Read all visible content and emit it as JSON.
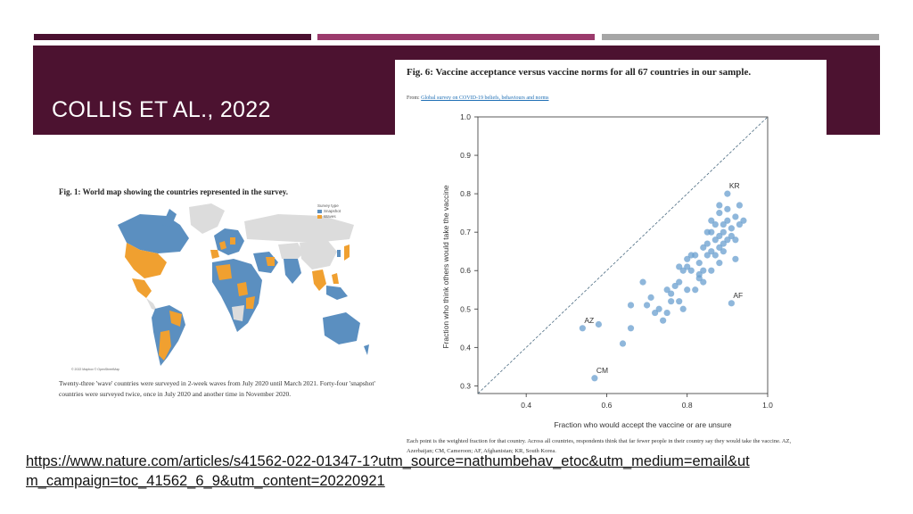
{
  "slide": {
    "title": "COLLIS ET AL., 2022",
    "url": "https://www.nature.com/articles/s41562-022-01347-1?utm_source=nathumbehav_etoc&utm_medium=email&utm_campaign=toc_41562_6_9&utm_content=20220921"
  },
  "colors": {
    "title_band": "#4c1230",
    "bar1": "#4a1030",
    "bar2": "#9b3a6c",
    "bar3": "#a6a6a6",
    "snapshot": "#5b8fc0",
    "waves": "#f0a030",
    "point": "#6a9fcf"
  },
  "fig1": {
    "title": "Fig. 1: World map showing the countries represented in the survey.",
    "legend_title": "Survey type",
    "legend_items": [
      "Snapshot",
      "Waves"
    ],
    "credit": "© 2022 Mapbox © OpenStreetMap",
    "caption": "Twenty-three 'wave' countries were surveyed in 2-week waves from July 2020 until March 2021. Forty-four 'snapshot' countries were surveyed twice, once in July 2020 and another time in November 2020."
  },
  "fig6": {
    "title": "Fig. 6: Vaccine acceptance versus vaccine norms for all 67 countries in our sample.",
    "from_label": "From:",
    "from_link": "Global survey on COVID-19 beliefs, behaviours and norms",
    "caption": "Each point is the weighted fraction for that country. Across all countries, respondents think that far fewer people in their country say they would take the vaccine. AZ, Azerbaijan; CM, Cameroon; AF, Afghanistan; KR, South Korea."
  },
  "chart_data": {
    "type": "scatter",
    "xlabel": "Fraction who would accept the vaccine or are unsure",
    "ylabel": "Fraction who think others would take the vaccine",
    "xlim": [
      0.28,
      1.0
    ],
    "ylim": [
      0.28,
      1.0
    ],
    "xticks": [
      "0.4",
      "0.6",
      "0.8",
      "1.0"
    ],
    "yticks": [
      "0.3",
      "0.4",
      "0.5",
      "0.6",
      "0.7",
      "0.8",
      "0.9",
      "1.0"
    ],
    "reference_line": "y = x",
    "labels": [
      {
        "text": "KR",
        "x": 0.9,
        "y": 0.8
      },
      {
        "text": "AF",
        "x": 0.91,
        "y": 0.515
      },
      {
        "text": "AZ",
        "x": 0.54,
        "y": 0.45
      },
      {
        "text": "CM",
        "x": 0.57,
        "y": 0.32
      }
    ],
    "points": [
      [
        0.54,
        0.45
      ],
      [
        0.58,
        0.46
      ],
      [
        0.57,
        0.32
      ],
      [
        0.64,
        0.41
      ],
      [
        0.66,
        0.45
      ],
      [
        0.66,
        0.51
      ],
      [
        0.69,
        0.57
      ],
      [
        0.7,
        0.51
      ],
      [
        0.71,
        0.53
      ],
      [
        0.72,
        0.49
      ],
      [
        0.73,
        0.5
      ],
      [
        0.74,
        0.47
      ],
      [
        0.75,
        0.49
      ],
      [
        0.75,
        0.55
      ],
      [
        0.76,
        0.52
      ],
      [
        0.77,
        0.56
      ],
      [
        0.78,
        0.52
      ],
      [
        0.78,
        0.61
      ],
      [
        0.79,
        0.5
      ],
      [
        0.79,
        0.6
      ],
      [
        0.8,
        0.55
      ],
      [
        0.8,
        0.63
      ],
      [
        0.81,
        0.6
      ],
      [
        0.81,
        0.64
      ],
      [
        0.82,
        0.55
      ],
      [
        0.83,
        0.59
      ],
      [
        0.83,
        0.62
      ],
      [
        0.84,
        0.57
      ],
      [
        0.84,
        0.66
      ],
      [
        0.85,
        0.64
      ],
      [
        0.85,
        0.67
      ],
      [
        0.86,
        0.6
      ],
      [
        0.86,
        0.65
      ],
      [
        0.86,
        0.7
      ],
      [
        0.87,
        0.68
      ],
      [
        0.87,
        0.72
      ],
      [
        0.88,
        0.62
      ],
      [
        0.88,
        0.66
      ],
      [
        0.88,
        0.69
      ],
      [
        0.88,
        0.75
      ],
      [
        0.89,
        0.67
      ],
      [
        0.89,
        0.7
      ],
      [
        0.89,
        0.72
      ],
      [
        0.9,
        0.68
      ],
      [
        0.9,
        0.73
      ],
      [
        0.9,
        0.8
      ],
      [
        0.9,
        0.76
      ],
      [
        0.91,
        0.515
      ],
      [
        0.91,
        0.71
      ],
      [
        0.92,
        0.63
      ],
      [
        0.92,
        0.74
      ],
      [
        0.93,
        0.72
      ],
      [
        0.93,
        0.77
      ],
      [
        0.94,
        0.73
      ],
      [
        0.83,
        0.58
      ],
      [
        0.84,
        0.6
      ],
      [
        0.82,
        0.64
      ],
      [
        0.8,
        0.61
      ],
      [
        0.78,
        0.57
      ],
      [
        0.76,
        0.54
      ],
      [
        0.87,
        0.64
      ],
      [
        0.89,
        0.65
      ],
      [
        0.91,
        0.69
      ],
      [
        0.85,
        0.7
      ],
      [
        0.86,
        0.73
      ],
      [
        0.88,
        0.77
      ],
      [
        0.92,
        0.68
      ]
    ]
  }
}
